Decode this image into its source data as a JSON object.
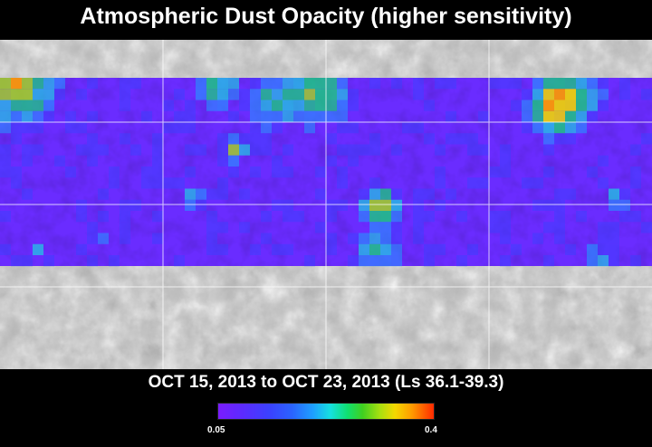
{
  "header": {
    "title": "Atmospheric Dust Opacity (higher sensitivity)"
  },
  "footer": {
    "date_range": "OCT 15, 2013 to OCT 23, 2013 (Ls 36.1-39.3)"
  },
  "legend": {
    "min_label": "0.05",
    "max_label": "0.4",
    "colormap": [
      "#7a1cff",
      "#3a42ff",
      "#1ea0ff",
      "#16e0e0",
      "#10e070",
      "#a8e010",
      "#f4d800",
      "#ff9a00",
      "#ff2a00"
    ]
  },
  "map": {
    "colors": {
      "background": "#000000",
      "grid": "#ffffff",
      "terrain": "#b9b9b9"
    }
  }
}
